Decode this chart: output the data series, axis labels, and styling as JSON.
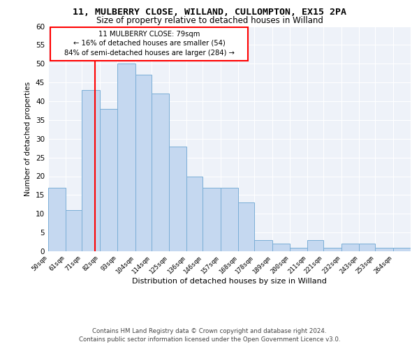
{
  "title1": "11, MULBERRY CLOSE, WILLAND, CULLOMPTON, EX15 2PA",
  "title2": "Size of property relative to detached houses in Willand",
  "xlabel": "Distribution of detached houses by size in Willand",
  "ylabel": "Number of detached properties",
  "categories": [
    "50sqm",
    "61sqm",
    "71sqm",
    "82sqm",
    "93sqm",
    "104sqm",
    "114sqm",
    "125sqm",
    "136sqm",
    "146sqm",
    "157sqm",
    "168sqm",
    "178sqm",
    "189sqm",
    "200sqm",
    "211sqm",
    "221sqm",
    "232sqm",
    "243sqm",
    "253sqm",
    "264sqm"
  ],
  "values": [
    17,
    11,
    43,
    38,
    50,
    47,
    42,
    28,
    20,
    17,
    17,
    13,
    3,
    2,
    1,
    3,
    1,
    2,
    2,
    1,
    1
  ],
  "bar_color": "#c5d8f0",
  "bar_edge_color": "#7aaed6",
  "vline_x": 79,
  "bin_edges": [
    50,
    61,
    71,
    82,
    93,
    104,
    114,
    125,
    136,
    146,
    157,
    168,
    178,
    189,
    200,
    211,
    221,
    232,
    243,
    253,
    264,
    275
  ],
  "annotation_title": "11 MULBERRY CLOSE: 79sqm",
  "annotation_line1": "← 16% of detached houses are smaller (54)",
  "annotation_line2": "84% of semi-detached houses are larger (284) →",
  "ylim": [
    0,
    60
  ],
  "yticks": [
    0,
    5,
    10,
    15,
    20,
    25,
    30,
    35,
    40,
    45,
    50,
    55,
    60
  ],
  "background_color": "#eef2f9",
  "grid_color": "#ffffff",
  "footer1": "Contains HM Land Registry data © Crown copyright and database right 2024.",
  "footer2": "Contains public sector information licensed under the Open Government Licence v3.0."
}
